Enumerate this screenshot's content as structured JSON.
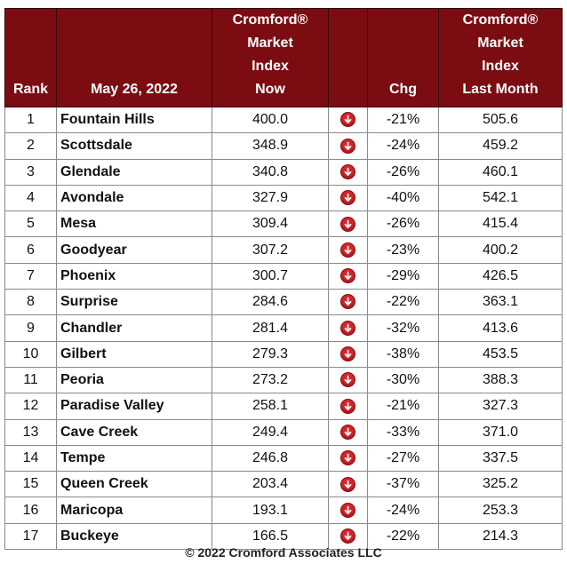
{
  "table": {
    "headers": {
      "rank": "Rank",
      "date": "May 26, 2022",
      "now_lines": [
        "Cromford®",
        "Market",
        "Index",
        "Now"
      ],
      "chg": "Chg",
      "last_lines": [
        "Cromford®",
        "Market",
        "Index",
        "Last Month"
      ]
    },
    "rows": [
      {
        "rank": "1",
        "city": "Fountain Hills",
        "now": "400.0",
        "chg": "-21%",
        "last": "505.6"
      },
      {
        "rank": "2",
        "city": "Scottsdale",
        "now": "348.9",
        "chg": "-24%",
        "last": "459.2"
      },
      {
        "rank": "3",
        "city": "Glendale",
        "now": "340.8",
        "chg": "-26%",
        "last": "460.1"
      },
      {
        "rank": "4",
        "city": "Avondale",
        "now": "327.9",
        "chg": "-40%",
        "last": "542.1"
      },
      {
        "rank": "5",
        "city": "Mesa",
        "now": "309.4",
        "chg": "-26%",
        "last": "415.4"
      },
      {
        "rank": "6",
        "city": "Goodyear",
        "now": "307.2",
        "chg": "-23%",
        "last": "400.2"
      },
      {
        "rank": "7",
        "city": "Phoenix",
        "now": "300.7",
        "chg": "-29%",
        "last": "426.5"
      },
      {
        "rank": "8",
        "city": "Surprise",
        "now": "284.6",
        "chg": "-22%",
        "last": "363.1"
      },
      {
        "rank": "9",
        "city": "Chandler",
        "now": "281.4",
        "chg": "-32%",
        "last": "413.6"
      },
      {
        "rank": "10",
        "city": "Gilbert",
        "now": "279.3",
        "chg": "-38%",
        "last": "453.5"
      },
      {
        "rank": "11",
        "city": "Peoria",
        "now": "273.2",
        "chg": "-30%",
        "last": "388.3"
      },
      {
        "rank": "12",
        "city": "Paradise Valley",
        "now": "258.1",
        "chg": "-21%",
        "last": "327.3"
      },
      {
        "rank": "13",
        "city": "Cave Creek",
        "now": "249.4",
        "chg": "-33%",
        "last": "371.0"
      },
      {
        "rank": "14",
        "city": "Tempe",
        "now": "246.8",
        "chg": "-27%",
        "last": "337.5"
      },
      {
        "rank": "15",
        "city": "Queen Creek",
        "now": "203.4",
        "chg": "-37%",
        "last": "325.2"
      },
      {
        "rank": "16",
        "city": "Maricopa",
        "now": "193.1",
        "chg": "-24%",
        "last": "253.3"
      },
      {
        "rank": "17",
        "city": "Buckeye",
        "now": "166.5",
        "chg": "-22%",
        "last": "214.3"
      }
    ],
    "trend_icon": "down-arrow-icon",
    "colors": {
      "header_bg": "#7b0d12",
      "arrow": "#d4242a"
    }
  },
  "footer": "© 2022 Cromford Associates LLC"
}
